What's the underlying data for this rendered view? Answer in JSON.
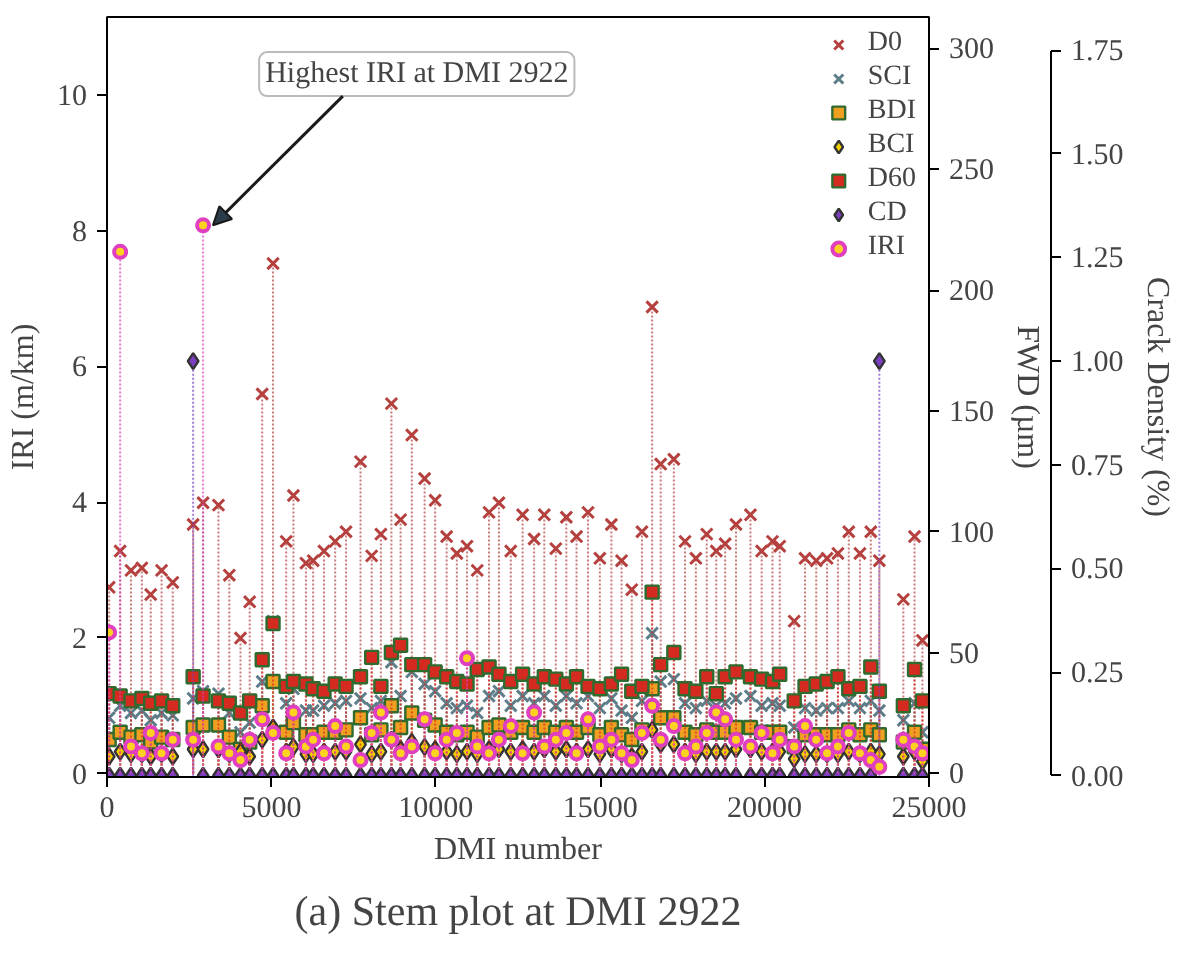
{
  "chart_data": {
    "type": "lollipop",
    "title": "(a) Stem plot at DMI 2922",
    "xlabel": "DMI number",
    "ylabel": "IRI (m/km)",
    "y2label": "FWD (µm)",
    "y3label": "Crack Density (%)",
    "x": [
      66,
      400,
      730,
      1060,
      1330,
      1660,
      2000,
      2620,
      2922,
      3390,
      3720,
      4060,
      4340,
      4720,
      5050,
      5450,
      5670,
      6050,
      6270,
      6600,
      6940,
      7270,
      7710,
      8050,
      8330,
      8650,
      8930,
      9270,
      9660,
      9980,
      10330,
      10640,
      10950,
      11260,
      11620,
      11920,
      12280,
      12640,
      12990,
      13300,
      13650,
      13970,
      14280,
      14630,
      14990,
      15340,
      15650,
      15960,
      16270,
      16580,
      16840,
      17240,
      17580,
      17910,
      18240,
      18530,
      18800,
      19130,
      19570,
      19910,
      20240,
      20460,
      20900,
      21230,
      21570,
      21900,
      22230,
      22560,
      22900,
      23230,
      23490,
      24220,
      24560,
      24800
    ],
    "xlim": [
      0,
      25000
    ],
    "xticks": [
      0,
      5000,
      10000,
      15000,
      20000,
      25000
    ],
    "ylim": [
      -0.05,
      11.15
    ],
    "yticks": [
      0,
      2,
      4,
      6,
      8,
      10
    ],
    "y2lim": [
      -1.5,
      313
    ],
    "y2ticks": [
      0,
      50,
      100,
      150,
      200,
      250,
      300
    ],
    "y3lim": [
      -0.003,
      1.83
    ],
    "y3ticks": [
      {
        "value": 0,
        "label": "0.00"
      },
      {
        "value": 0.25,
        "label": "0.25"
      },
      {
        "value": 0.5,
        "label": "0.50"
      },
      {
        "value": 0.75,
        "label": "0.75"
      },
      {
        "value": 1,
        "label": "1.00"
      },
      {
        "value": 1.25,
        "label": "1.25"
      },
      {
        "value": 1.5,
        "label": "1.50"
      },
      {
        "value": 1.75,
        "label": "1.75"
      }
    ],
    "legend": "top right",
    "series": [
      {
        "name": "D0",
        "color": "#b5413f",
        "marker": "cross",
        "axis": "y2",
        "values": [
          77,
          92,
          84,
          85,
          74,
          84,
          79,
          103,
          112,
          111,
          82,
          56,
          71,
          157,
          211,
          96,
          115,
          87,
          88,
          92,
          96,
          100,
          129,
          90,
          99,
          153,
          105,
          140,
          122,
          113,
          98,
          91,
          94,
          84,
          108,
          112,
          92,
          107,
          97,
          107,
          93,
          106,
          98,
          108,
          89,
          103,
          88,
          76,
          100,
          193,
          128,
          130,
          96,
          89,
          99,
          92,
          95,
          103,
          107,
          92,
          96,
          94,
          63,
          89,
          88,
          89,
          91,
          100,
          91,
          100,
          88,
          72,
          98,
          55
        ]
      },
      {
        "name": "SCI",
        "color": "#5d7d88",
        "marker": "cross",
        "axis": "y2",
        "values": [
          23,
          28,
          25,
          26,
          22,
          25,
          24,
          31,
          34,
          33,
          25,
          17,
          21,
          38,
          63,
          29,
          35,
          26,
          26,
          28,
          29,
          30,
          31,
          27,
          30,
          46,
          32,
          42,
          37,
          34,
          29,
          27,
          28,
          25,
          32,
          34,
          28,
          32,
          29,
          32,
          28,
          32,
          29,
          32,
          27,
          31,
          26,
          23,
          30,
          58,
          38,
          39,
          29,
          27,
          30,
          28,
          29,
          31,
          32,
          28,
          29,
          28,
          19,
          27,
          26,
          27,
          27,
          30,
          27,
          30,
          26,
          22,
          29,
          17
        ]
      },
      {
        "name": "BDI",
        "color": "#f0a020",
        "marker": "square",
        "axis": "y2",
        "values": [
          14,
          17,
          15,
          16,
          13,
          15,
          14,
          19,
          20,
          20,
          15,
          10,
          13,
          28,
          38,
          17,
          21,
          16,
          16,
          17,
          17,
          18,
          23,
          16,
          18,
          28,
          19,
          25,
          22,
          20,
          17,
          16,
          17,
          15,
          19,
          20,
          17,
          19,
          17,
          19,
          17,
          19,
          17,
          19,
          16,
          19,
          16,
          14,
          18,
          35,
          23,
          23,
          17,
          16,
          18,
          17,
          17,
          19,
          19,
          17,
          17,
          17,
          11,
          16,
          16,
          16,
          16,
          18,
          16,
          18,
          16,
          13,
          17,
          10
        ]
      },
      {
        "name": "BCI",
        "color": "#f2d000",
        "marker": "diamond",
        "axis": "y2",
        "values": [
          7,
          9,
          8,
          8,
          7,
          8,
          7,
          10,
          10,
          10,
          8,
          9,
          7,
          14,
          19,
          9,
          11,
          8,
          8,
          9,
          9,
          9,
          12,
          8,
          9,
          14,
          10,
          13,
          11,
          10,
          9,
          8,
          9,
          8,
          10,
          10,
          9,
          10,
          9,
          10,
          9,
          10,
          9,
          10,
          8,
          10,
          8,
          7,
          9,
          18,
          12,
          12,
          9,
          8,
          9,
          9,
          9,
          10,
          10,
          9,
          9,
          9,
          6,
          8,
          8,
          8,
          8,
          9,
          8,
          9,
          8,
          7,
          9,
          5
        ]
      },
      {
        "name": "D60",
        "color": "#d42a20",
        "marker": "square",
        "axis": "y2",
        "values": [
          33,
          32,
          30,
          31,
          29,
          30,
          28,
          40,
          32,
          30,
          29,
          25,
          30,
          47,
          62,
          36,
          38,
          37,
          35,
          34,
          37,
          36,
          40,
          48,
          36,
          50,
          53,
          45,
          45,
          42,
          40,
          38,
          37,
          43,
          44,
          41,
          38,
          41,
          37,
          40,
          39,
          37,
          40,
          36,
          35,
          37,
          41,
          34,
          36,
          75,
          45,
          50,
          35,
          34,
          40,
          33,
          40,
          42,
          40,
          39,
          38,
          41,
          30,
          36,
          37,
          38,
          40,
          35,
          36,
          44,
          34,
          28,
          43,
          30
        ]
      },
      {
        "name": "CD",
        "color": "#7b3fbf",
        "marker": "diamond",
        "axis": "y3",
        "values": [
          0,
          0,
          0,
          0,
          0,
          0,
          0,
          1.0,
          0,
          0,
          0,
          0,
          0,
          0,
          0,
          0,
          0,
          0,
          0,
          0,
          0,
          0,
          0,
          0,
          0,
          0,
          0,
          0,
          0,
          0,
          0,
          0,
          0,
          0,
          0,
          0,
          0,
          0,
          0,
          0,
          0,
          0,
          0,
          0,
          0,
          0,
          0,
          0,
          0,
          0,
          0,
          0,
          0,
          0,
          0,
          0,
          0,
          0,
          0,
          0,
          0,
          0,
          0,
          0,
          0,
          0,
          0,
          0,
          0,
          0,
          1.0,
          0,
          0,
          0
        ]
      },
      {
        "name": "IRI",
        "color": "#e040c0",
        "marker": "circle",
        "values": [
          2.08,
          7.69,
          0.4,
          0.3,
          0.6,
          0.3,
          0.5,
          0.5,
          8.08,
          0.4,
          0.3,
          0.2,
          0.5,
          0.8,
          0.6,
          0.3,
          0.9,
          0.4,
          0.5,
          0.3,
          0.7,
          0.4,
          0.2,
          0.6,
          0.9,
          0.5,
          0.3,
          0.4,
          0.8,
          0.3,
          0.5,
          0.6,
          1.7,
          0.4,
          0.3,
          0.5,
          0.7,
          0.3,
          0.9,
          0.4,
          0.5,
          0.6,
          0.3,
          0.8,
          0.4,
          0.5,
          0.3,
          0.2,
          0.6,
          1.0,
          0.5,
          0.7,
          0.3,
          0.4,
          0.6,
          0.9,
          0.8,
          0.5,
          0.4,
          0.6,
          0.3,
          0.5,
          0.4,
          0.7,
          0.5,
          0.3,
          0.4,
          0.6,
          0.3,
          0.2,
          0.1,
          0.5,
          0.4,
          0.3
        ]
      }
    ],
    "annotations": [
      {
        "text": "Highest IRI at DMI 2922",
        "x": 2922,
        "y": 8.08
      }
    ]
  }
}
